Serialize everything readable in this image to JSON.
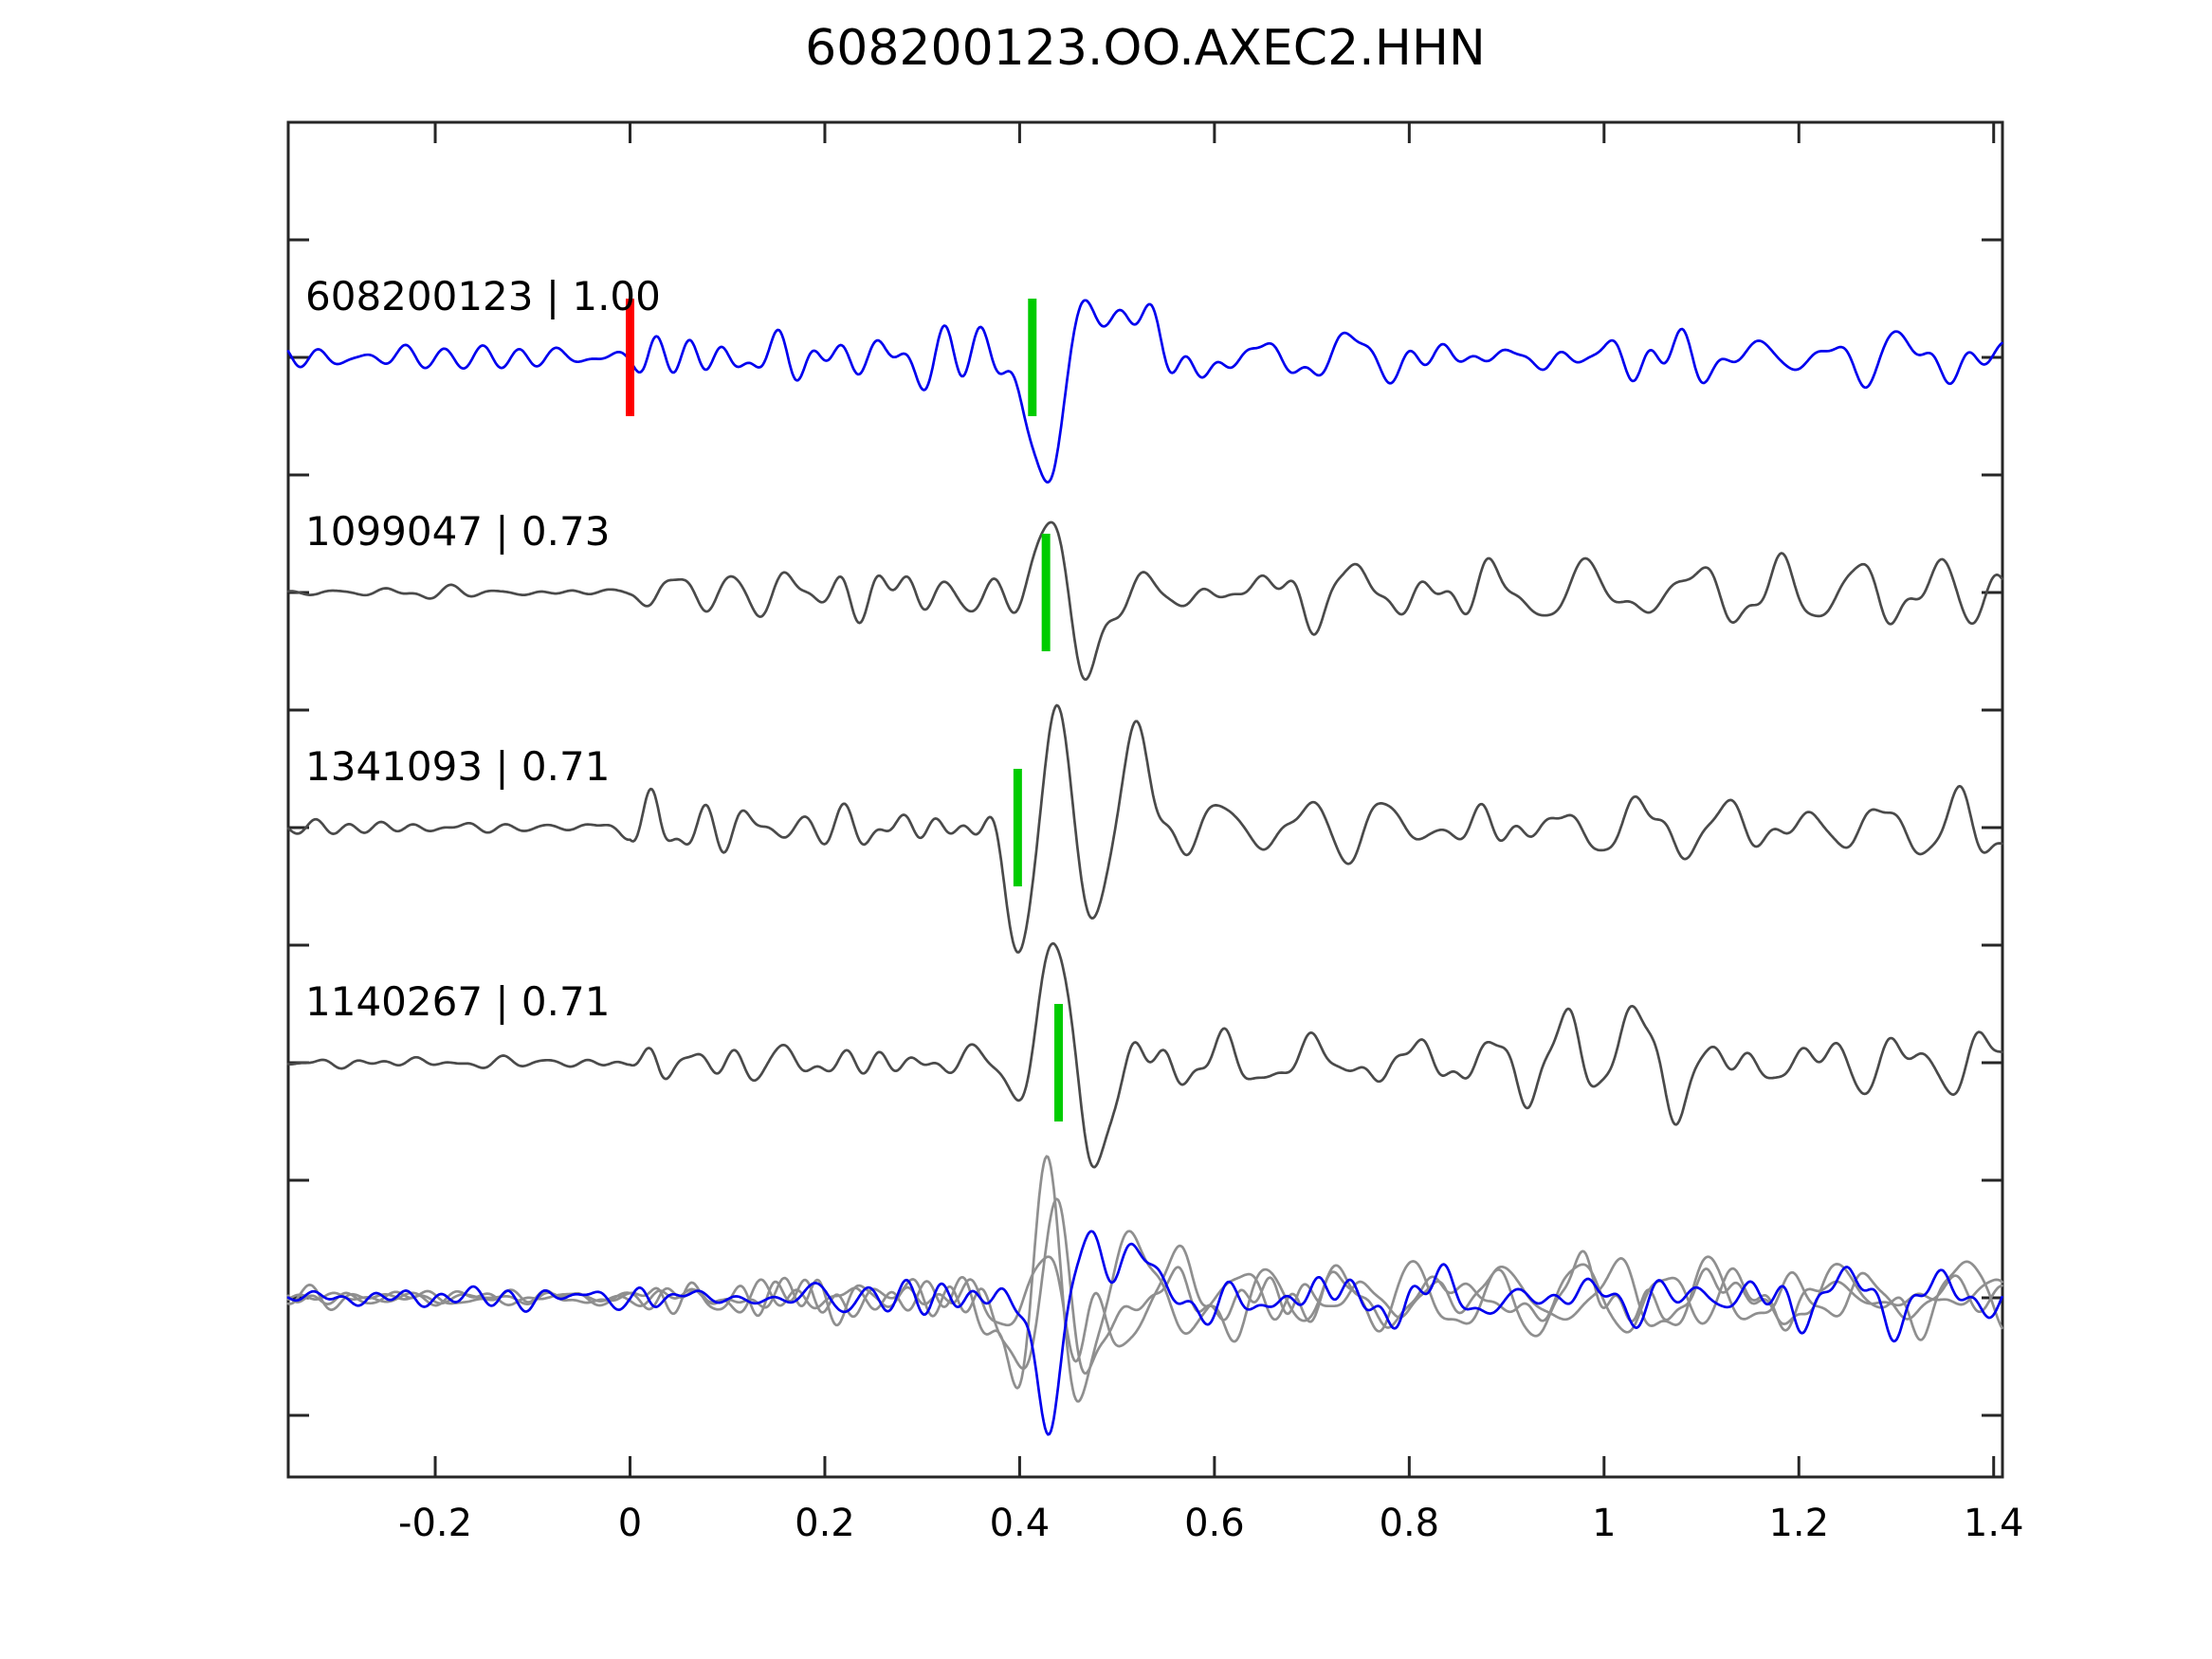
{
  "title": "608200123.OO.AXEC2.HHN",
  "chart_data": {
    "type": "line",
    "title": "608200123.OO.AXEC2.HHN",
    "xlabel": "",
    "ylabel": "",
    "xlim": [
      -0.35,
      1.41
    ],
    "grid": false,
    "legend": "none",
    "x_ticks": [
      -0.2,
      0,
      0.2,
      0.4,
      0.6,
      0.8,
      1,
      1.2,
      1.4
    ],
    "x_tick_labels": [
      "-0.2",
      "0",
      "0.2",
      "0.4",
      "0.6",
      "0.8",
      "1",
      "1.2",
      "1.4"
    ],
    "y_ticks_unlabeled": 11,
    "colors": {
      "target_trace": "#0000EE",
      "template_trace": "#4A4A4A",
      "overlay_trace": "#8F8F8F",
      "reference_pick": "#FF0000",
      "match_pick": "#00CC00",
      "axis": "#262626",
      "text": "#000000"
    },
    "rows": [
      {
        "label": "608200123 | 1.00",
        "red_pick_t": 0,
        "green_pick_t": 0.413,
        "traces": [
          {
            "color": "#0000EE",
            "seed": 11,
            "hf_env": [
              [
                -0.35,
                5
              ],
              [
                0,
                5
              ],
              [
                0.02,
                12
              ],
              [
                0.33,
                14
              ],
              [
                0.45,
                12
              ],
              [
                0.6,
                10
              ],
              [
                1.4,
                8
              ]
            ],
            "lf_env": [
              [
                -0.35,
                2
              ],
              [
                0,
                2
              ],
              [
                0.05,
                5
              ],
              [
                0.45,
                8
              ],
              [
                0.55,
                11
              ],
              [
                0.9,
                10
              ],
              [
                1.4,
                9
              ]
            ],
            "features": [
              [
                0.43,
                -135,
                0.013
              ],
              [
                0.408,
                -30,
                0.01
              ],
              [
                0.463,
                46,
                0.012
              ],
              [
                0.525,
                62,
                0.028
              ],
              [
                0.565,
                -48,
                0.016
              ]
            ]
          }
        ]
      },
      {
        "label": "1099047 | 0.73",
        "red_pick_t": null,
        "green_pick_t": 0.427,
        "traces": [
          {
            "color": "#4A4A4A",
            "seed": 22,
            "hf_env": [
              [
                -0.35,
                3
              ],
              [
                0,
                3
              ],
              [
                0.03,
                17
              ],
              [
                0.15,
                10
              ],
              [
                0.3,
                15
              ],
              [
                0.38,
                9
              ],
              [
                0.5,
                8
              ],
              [
                1.4,
                7
              ]
            ],
            "lf_env": [
              [
                -0.35,
                2
              ],
              [
                0,
                2
              ],
              [
                0.1,
                5
              ],
              [
                0.35,
                8
              ],
              [
                0.47,
                22
              ],
              [
                0.8,
                23
              ],
              [
                1.1,
                21
              ],
              [
                1.4,
                17
              ]
            ],
            "features": [
              [
                0.432,
                112,
                0.016
              ],
              [
                0.466,
                -105,
                0.016
              ],
              [
                0.4,
                -35,
                0.015
              ]
            ]
          }
        ]
      },
      {
        "label": "1341093 | 0.71",
        "red_pick_t": null,
        "green_pick_t": 0.398,
        "traces": [
          {
            "color": "#4A4A4A",
            "seed": 33,
            "hf_env": [
              [
                -0.35,
                3
              ],
              [
                0,
                3
              ],
              [
                0.03,
                18
              ],
              [
                0.15,
                11
              ],
              [
                0.3,
                13
              ],
              [
                0.4,
                8
              ],
              [
                1.4,
                7
              ]
            ],
            "lf_env": [
              [
                -0.35,
                2
              ],
              [
                0,
                2
              ],
              [
                0.1,
                5
              ],
              [
                0.35,
                8
              ],
              [
                0.47,
                23
              ],
              [
                0.8,
                22
              ],
              [
                1.4,
                17
              ]
            ],
            "features": [
              [
                0.404,
                -128,
                0.014
              ],
              [
                0.437,
                105,
                0.017
              ],
              [
                0.474,
                -60,
                0.02
              ],
              [
                0.52,
                55,
                0.022
              ]
            ]
          }
        ]
      },
      {
        "label": "1140267 | 0.71",
        "red_pick_t": null,
        "green_pick_t": 0.44,
        "traces": [
          {
            "color": "#4A4A4A",
            "seed": 44,
            "hf_env": [
              [
                -0.35,
                3
              ],
              [
                0,
                3
              ],
              [
                0.03,
                14
              ],
              [
                0.15,
                8
              ],
              [
                0.3,
                9
              ],
              [
                0.4,
                7
              ],
              [
                1.4,
                6
              ]
            ],
            "lf_env": [
              [
                -0.35,
                2
              ],
              [
                0,
                2
              ],
              [
                0.1,
                4
              ],
              [
                0.35,
                6
              ],
              [
                0.47,
                13
              ],
              [
                0.75,
                12
              ],
              [
                0.95,
                17
              ],
              [
                1.1,
                15
              ],
              [
                1.4,
                9
              ]
            ],
            "features": [
              [
                0.437,
                130,
                0.015
              ],
              [
                0.472,
                -88,
                0.018
              ],
              [
                0.41,
                -25,
                0.015
              ],
              [
                1.03,
                42,
                0.024
              ],
              [
                1.066,
                -38,
                0.02
              ]
            ]
          }
        ]
      },
      {
        "label": null,
        "red_pick_t": null,
        "green_pick_t": null,
        "traces": [
          {
            "color": "#8F8F8F",
            "seed": 55,
            "hf_env": [
              [
                -0.35,
                4
              ],
              [
                0,
                4
              ],
              [
                0.03,
                11
              ],
              [
                0.15,
                8
              ],
              [
                0.35,
                8
              ],
              [
                1.4,
                6
              ]
            ],
            "lf_env": [
              [
                -0.35,
                3
              ],
              [
                0,
                3
              ],
              [
                0.1,
                4
              ],
              [
                0.35,
                7
              ],
              [
                0.47,
                19
              ],
              [
                0.8,
                18
              ],
              [
                1.4,
                15
              ]
            ],
            "features": [
              [
                0.398,
                -115,
                0.013
              ],
              [
                0.428,
                140,
                0.015
              ],
              [
                0.458,
                -125,
                0.016
              ],
              [
                0.49,
                55,
                0.02
              ]
            ]
          },
          {
            "color": "#8F8F8F",
            "seed": 66,
            "hf_env": [
              [
                -0.35,
                4
              ],
              [
                0,
                4
              ],
              [
                0.03,
                11
              ],
              [
                0.15,
                8
              ],
              [
                0.35,
                8
              ],
              [
                1.4,
                6
              ]
            ],
            "lf_env": [
              [
                -0.35,
                3
              ],
              [
                0,
                3
              ],
              [
                0.1,
                4
              ],
              [
                0.35,
                7
              ],
              [
                0.47,
                19
              ],
              [
                0.8,
                18
              ],
              [
                1.4,
                15
              ]
            ],
            "features": [
              [
                0.408,
                -120,
                0.014
              ],
              [
                0.438,
                130,
                0.016
              ],
              [
                0.468,
                -85,
                0.018
              ]
            ]
          },
          {
            "color": "#8F8F8F",
            "seed": 77,
            "hf_env": [
              [
                -0.35,
                4
              ],
              [
                0,
                4
              ],
              [
                0.03,
                11
              ],
              [
                0.15,
                8
              ],
              [
                0.35,
                8
              ],
              [
                1.4,
                6
              ]
            ],
            "lf_env": [
              [
                -0.35,
                3
              ],
              [
                0,
                3
              ],
              [
                0.1,
                4
              ],
              [
                0.35,
                7
              ],
              [
                0.47,
                19
              ],
              [
                0.8,
                18
              ],
              [
                1.4,
                15
              ]
            ],
            "features": [
              [
                0.425,
                85,
                0.018
              ],
              [
                0.452,
                -90,
                0.018
              ],
              [
                0.4,
                -40,
                0.015
              ]
            ]
          },
          {
            "color": "#0000EE",
            "seed": 88,
            "hf_env": [
              [
                -0.35,
                4
              ],
              [
                0,
                4
              ],
              [
                0.02,
                10
              ],
              [
                0.45,
                10
              ],
              [
                0.6,
                8
              ],
              [
                1.4,
                7
              ]
            ],
            "lf_env": [
              [
                -0.35,
                2
              ],
              [
                0,
                2
              ],
              [
                0.1,
                4
              ],
              [
                0.42,
                6
              ],
              [
                0.52,
                12
              ],
              [
                0.8,
                10
              ],
              [
                1.4,
                9
              ]
            ],
            "features": [
              [
                0.432,
                -132,
                0.014
              ],
              [
                0.462,
                50,
                0.013
              ],
              [
                0.52,
                72,
                0.024
              ],
              [
                0.56,
                -40,
                0.018
              ]
            ]
          }
        ]
      }
    ]
  }
}
